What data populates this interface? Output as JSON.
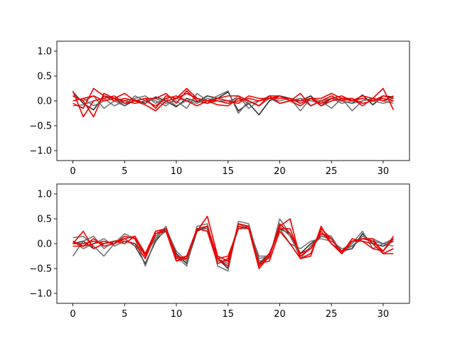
{
  "chart_data": [
    {
      "type": "line",
      "title": "",
      "xlabel": "",
      "ylabel": "",
      "xlim": [
        -1.55,
        32.55
      ],
      "ylim": [
        -1.2,
        1.2
      ],
      "xticks": [
        0,
        5,
        10,
        15,
        20,
        25,
        30
      ],
      "yticks": [
        -1.0,
        -0.5,
        0.0,
        0.5,
        1.0
      ],
      "xtick_labels": [
        "0",
        "5",
        "10",
        "15",
        "20",
        "25",
        "30"
      ],
      "ytick_labels": [
        "−1.0",
        "−0.5",
        "0.0",
        "0.5",
        "1.0"
      ],
      "grid": false,
      "series": [
        {
          "color": "#1a1a1a",
          "values": [
            0.18,
            -0.05,
            -0.18,
            0.1,
            0.05,
            -0.1,
            0.02,
            -0.05,
            0.08,
            0.0,
            -0.12,
            0.05,
            -0.02,
            0.1,
            0.05,
            0.18,
            -0.2,
            -0.05,
            -0.28,
            0.0,
            0.1,
            0.05,
            0.0,
            0.1,
            -0.1,
            0.05,
            0.0,
            -0.05,
            0.12,
            -0.08,
            0.1,
            0.08
          ]
        },
        {
          "color": "#666666",
          "values": [
            0.1,
            0.0,
            0.1,
            -0.15,
            0.0,
            -0.1,
            0.1,
            0.0,
            0.05,
            -0.05,
            0.0,
            -0.15,
            0.15,
            0.0,
            0.1,
            0.2,
            -0.25,
            0.0,
            -0.1,
            0.05,
            0.0,
            0.05,
            -0.2,
            0.05,
            0.0,
            -0.15,
            0.05,
            -0.2,
            0.0,
            0.05,
            0.0,
            -0.05
          ]
        },
        {
          "color": "#666666",
          "values": [
            -0.1,
            -0.08,
            0.0,
            0.05,
            -0.1,
            0.0,
            0.05,
            0.1,
            -0.05,
            0.05,
            -0.1,
            0.0,
            0.05,
            -0.05,
            0.0,
            -0.05,
            0.1,
            -0.15,
            0.0,
            0.1,
            -0.05,
            0.0,
            0.05,
            -0.1,
            0.0,
            0.05,
            -0.05,
            0.0,
            0.05,
            0.0,
            -0.05,
            0.0
          ]
        },
        {
          "color": "#666666",
          "values": [
            0.0,
            0.05,
            -0.1,
            0.0,
            0.05,
            -0.05,
            0.0,
            0.05,
            0.0,
            -0.1,
            0.05,
            0.0,
            -0.05,
            0.05,
            0.0,
            0.0,
            0.05,
            -0.05,
            0.0,
            0.05,
            -0.05,
            0.0,
            0.05,
            0.0,
            -0.05,
            0.05,
            0.0,
            -0.05,
            0.0,
            0.05,
            0.0,
            0.05
          ]
        },
        {
          "color": "#ee0000",
          "values": [
            0.2,
            -0.32,
            0.0,
            0.05,
            0.1,
            -0.05,
            0.0,
            0.05,
            0.05,
            0.15,
            -0.05,
            0.2,
            0.0,
            -0.05,
            0.05,
            0.1,
            0.1,
            0.0,
            -0.1,
            0.1,
            0.1,
            0.0,
            0.15,
            -0.1,
            0.0,
            0.1,
            0.0,
            0.05,
            -0.1,
            0.05,
            0.25,
            -0.18
          ]
        },
        {
          "color": "#ee0000",
          "values": [
            -0.05,
            -0.15,
            0.25,
            0.1,
            0.0,
            0.05,
            0.0,
            0.05,
            -0.15,
            0.1,
            0.05,
            0.25,
            0.05,
            0.0,
            0.05,
            0.0,
            -0.05,
            0.1,
            0.05,
            0.05,
            0.05,
            0.05,
            -0.05,
            0.05,
            0.05,
            0.15,
            0.05,
            0.0,
            0.1,
            0.05,
            0.0,
            0.1
          ]
        },
        {
          "color": "#ee0000",
          "values": [
            0.1,
            0.0,
            -0.32,
            0.15,
            0.05,
            0.0,
            -0.05,
            0.0,
            -0.1,
            0.05,
            0.1,
            0.0,
            -0.1,
            0.0,
            -0.08,
            -0.1,
            0.05,
            0.0,
            -0.1,
            0.1,
            -0.05,
            0.0,
            -0.1,
            0.05,
            -0.1,
            0.0,
            0.05,
            0.05,
            -0.05,
            0.0,
            0.05,
            0.0
          ]
        },
        {
          "color": "#ee0000",
          "values": [
            0.0,
            0.05,
            0.1,
            0.0,
            0.05,
            0.15,
            0.0,
            -0.08,
            -0.2,
            0.0,
            0.05,
            0.15,
            0.05,
            0.0,
            0.0,
            -0.05,
            0.0,
            0.05,
            0.0,
            0.05,
            0.1,
            0.0,
            0.0,
            0.05,
            -0.05,
            0.05,
            0.1,
            0.0,
            0.05,
            0.0,
            0.1,
            0.05
          ]
        }
      ]
    },
    {
      "type": "line",
      "title": "",
      "xlabel": "",
      "ylabel": "",
      "xlim": [
        -1.55,
        32.55
      ],
      "ylim": [
        -1.2,
        1.2
      ],
      "xticks": [
        0,
        5,
        10,
        15,
        20,
        25,
        30
      ],
      "yticks": [
        -1.0,
        -0.5,
        0.0,
        0.5,
        1.0
      ],
      "xtick_labels": [
        "0",
        "5",
        "10",
        "15",
        "20",
        "25",
        "30"
      ],
      "ytick_labels": [
        "−1.0",
        "−0.5",
        "0.0",
        "0.5",
        "1.0"
      ],
      "grid": false,
      "series": [
        {
          "color": "#1a1a1a",
          "values": [
            0.0,
            0.05,
            -0.1,
            0.0,
            0.05,
            0.1,
            -0.05,
            -0.4,
            0.05,
            0.3,
            -0.2,
            -0.4,
            0.25,
            0.35,
            -0.3,
            -0.5,
            0.4,
            0.35,
            -0.4,
            -0.2,
            0.3,
            0.2,
            -0.2,
            0.0,
            0.15,
            0.1,
            -0.15,
            -0.1,
            0.2,
            0.0,
            -0.05,
            0.05
          ]
        },
        {
          "color": "#666666",
          "values": [
            0.12,
            0.15,
            -0.05,
            -0.25,
            0.0,
            0.2,
            0.1,
            -0.45,
            0.1,
            0.35,
            -0.25,
            -0.45,
            0.35,
            0.4,
            -0.45,
            -0.55,
            0.45,
            0.4,
            -0.35,
            -0.3,
            0.5,
            0.2,
            -0.3,
            -0.05,
            0.2,
            0.15,
            -0.2,
            0.0,
            0.25,
            -0.1,
            0.0,
            0.1
          ]
        },
        {
          "color": "#666666",
          "values": [
            -0.25,
            0.05,
            0.15,
            -0.1,
            0.05,
            0.1,
            -0.05,
            -0.2,
            0.1,
            0.25,
            -0.3,
            -0.3,
            0.3,
            0.3,
            -0.3,
            -0.4,
            0.4,
            0.3,
            -0.3,
            -0.25,
            0.3,
            0.0,
            -0.1,
            0.05,
            0.1,
            0.05,
            -0.1,
            -0.05,
            0.15,
            0.05,
            0.0,
            -0.05
          ]
        },
        {
          "color": "#666666",
          "values": [
            0.05,
            -0.1,
            0.0,
            0.1,
            -0.05,
            0.05,
            0.0,
            -0.2,
            0.15,
            0.3,
            -0.15,
            -0.35,
            0.3,
            0.3,
            -0.35,
            -0.35,
            0.3,
            0.3,
            -0.25,
            -0.25,
            0.35,
            0.15,
            -0.25,
            -0.1,
            0.15,
            0.1,
            -0.15,
            -0.05,
            0.1,
            0.1,
            0.0,
            0.05
          ]
        },
        {
          "color": "#ee0000",
          "values": [
            0.05,
            -0.05,
            0.1,
            -0.05,
            0.0,
            0.1,
            0.15,
            -0.25,
            0.25,
            0.3,
            -0.3,
            -0.25,
            0.3,
            0.35,
            -0.3,
            -0.45,
            0.4,
            0.35,
            -0.45,
            -0.25,
            0.4,
            0.2,
            -0.2,
            -0.1,
            0.25,
            0.0,
            -0.15,
            0.05,
            0.1,
            0.05,
            -0.15,
            0.15
          ]
        },
        {
          "color": "#ee0000",
          "values": [
            0.0,
            0.25,
            -0.1,
            0.0,
            0.05,
            0.05,
            0.0,
            -0.3,
            0.2,
            0.3,
            -0.35,
            -0.25,
            0.25,
            0.55,
            -0.25,
            -0.35,
            0.35,
            0.3,
            -0.5,
            -0.25,
            0.35,
            0.5,
            -0.3,
            -0.2,
            0.3,
            0.1,
            -0.2,
            0.1,
            0.05,
            0.0,
            -0.2,
            -0.1
          ]
        },
        {
          "color": "#ee0000",
          "values": [
            -0.05,
            -0.05,
            0.0,
            0.05,
            0.0,
            0.15,
            0.1,
            -0.25,
            0.2,
            0.25,
            -0.35,
            -0.3,
            0.3,
            0.25,
            -0.4,
            -0.3,
            0.35,
            0.3,
            -0.4,
            -0.35,
            0.25,
            0.0,
            -0.3,
            -0.25,
            0.35,
            0.0,
            -0.2,
            0.05,
            0.05,
            -0.1,
            -0.15,
            0.1
          ]
        },
        {
          "color": "#ee0000",
          "values": [
            0.0,
            0.0,
            0.05,
            0.0,
            0.05,
            0.0,
            0.15,
            -0.2,
            0.25,
            0.3,
            -0.25,
            -0.3,
            0.3,
            0.25,
            -0.3,
            -0.25,
            0.3,
            0.35,
            -0.45,
            -0.2,
            0.3,
            0.3,
            -0.25,
            -0.1,
            0.2,
            0.1,
            -0.2,
            0.05,
            0.1,
            0.1,
            -0.2,
            -0.2
          ]
        }
      ]
    }
  ]
}
